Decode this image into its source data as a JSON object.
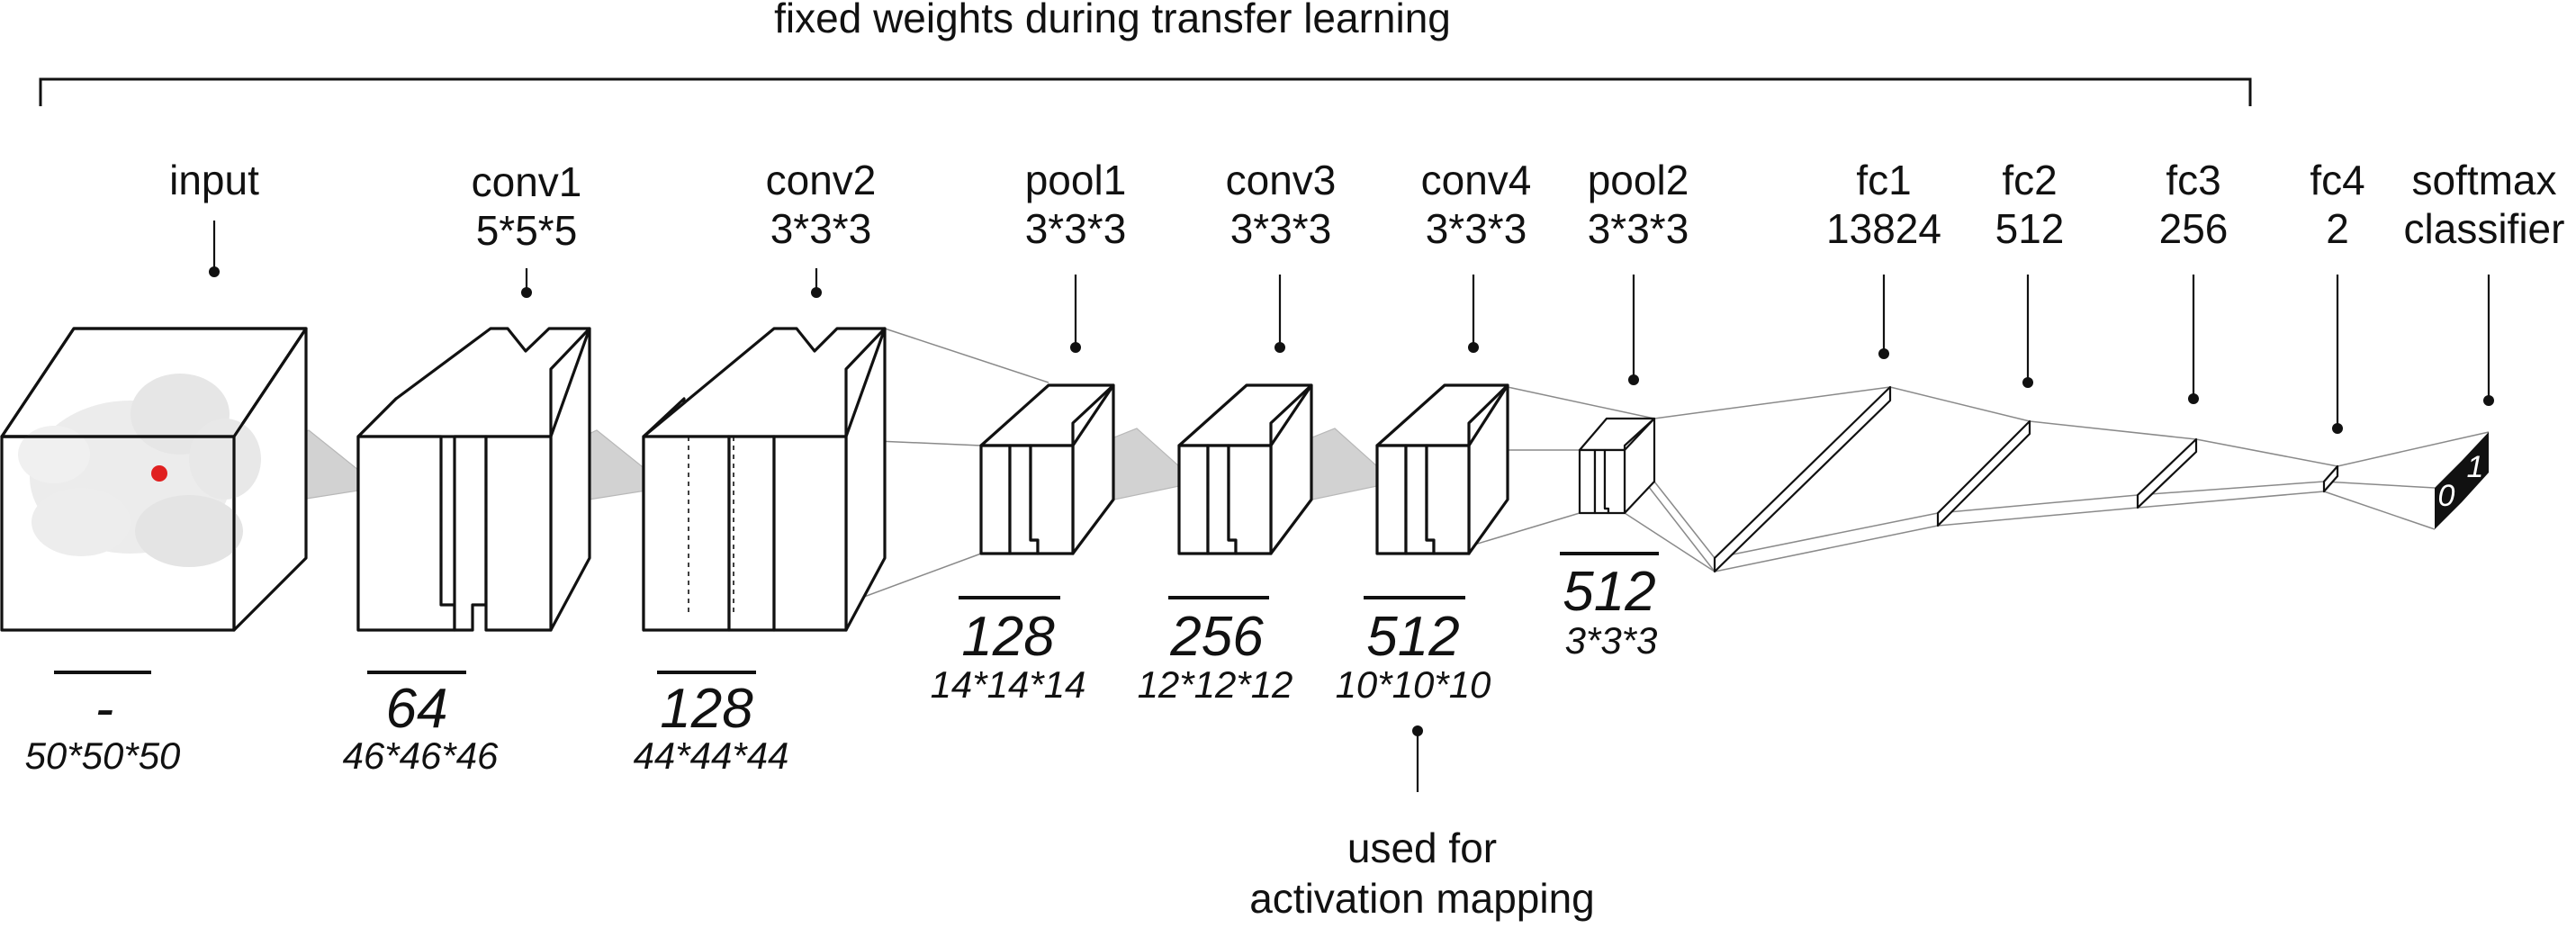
{
  "top_bracket_label": "fixed weights during transfer learning",
  "layers": [
    {
      "id": "input",
      "name": "input",
      "kernel": "",
      "channels": "-",
      "size": "50*50*50"
    },
    {
      "id": "conv1",
      "name": "conv1",
      "kernel": "5*5*5",
      "channels": "64",
      "size": "46*46*46"
    },
    {
      "id": "conv2",
      "name": "conv2",
      "kernel": "3*3*3",
      "channels": "128",
      "size": "44*44*44"
    },
    {
      "id": "pool1",
      "name": "pool1",
      "kernel": "3*3*3",
      "channels": "128",
      "size": "14*14*14"
    },
    {
      "id": "conv3",
      "name": "conv3",
      "kernel": "3*3*3",
      "channels": "256",
      "size": "12*12*12"
    },
    {
      "id": "conv4",
      "name": "conv4",
      "kernel": "3*3*3",
      "channels": "512",
      "size": "10*10*10"
    },
    {
      "id": "pool2",
      "name": "pool2",
      "kernel": "3*3*3",
      "channels": "512",
      "size": "3*3*3"
    }
  ],
  "fc_layers": [
    {
      "id": "fc1",
      "name": "fc1",
      "units": "13824"
    },
    {
      "id": "fc2",
      "name": "fc2",
      "units": "512"
    },
    {
      "id": "fc3",
      "name": "fc3",
      "units": "256"
    },
    {
      "id": "fc4",
      "name": "fc4",
      "units": "2"
    }
  ],
  "classifier": {
    "line1": "softmax",
    "line2": "classifier",
    "out0": "0",
    "out1": "1"
  },
  "activation_note": {
    "line1": "used for",
    "line2": "activation mapping"
  },
  "colors": {
    "highlight_dot": "#e02020",
    "output_box": "#111111"
  }
}
